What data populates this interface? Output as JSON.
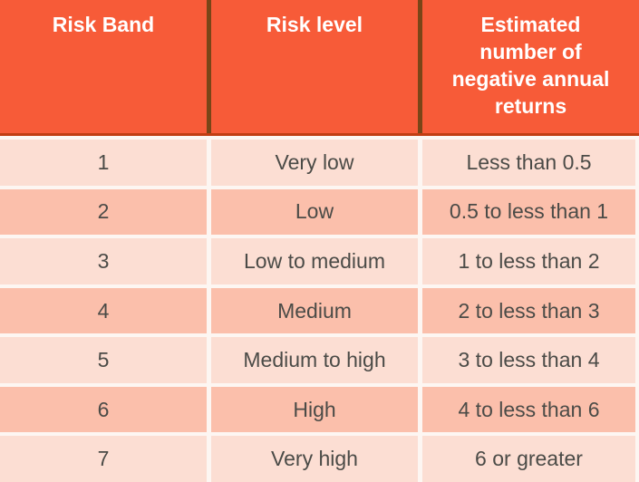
{
  "table": {
    "columns": [
      {
        "label": "Risk Band"
      },
      {
        "label": "Risk level"
      },
      {
        "label": "Estimated\nnumber of\nnegative annual\nreturns"
      }
    ],
    "rows": [
      {
        "band": "1",
        "level": "Very low",
        "returns": "Less than 0.5"
      },
      {
        "band": "2",
        "level": "Low",
        "returns": "0.5 to less than 1"
      },
      {
        "band": "3",
        "level": "Low to medium",
        "returns": "1 to less than 2"
      },
      {
        "band": "4",
        "level": "Medium",
        "returns": "2 to less than 3"
      },
      {
        "band": "5",
        "level": "Medium to high",
        "returns": "3 to less than 4"
      },
      {
        "band": "6",
        "level": "High",
        "returns": "4 to less than 6"
      },
      {
        "band": "7",
        "level": "Very high",
        "returns": "6 or greater"
      }
    ],
    "colors": {
      "header_bg": "#f75b38",
      "header_text": "#ffffff",
      "header_divider": "#7a4517",
      "header_bottom_border": "#c13d12",
      "row_light_bg": "#fcded3",
      "row_dark_bg": "#fbbfab",
      "gap_bg": "#fdf6f2",
      "body_text": "#4b4b47"
    }
  }
}
